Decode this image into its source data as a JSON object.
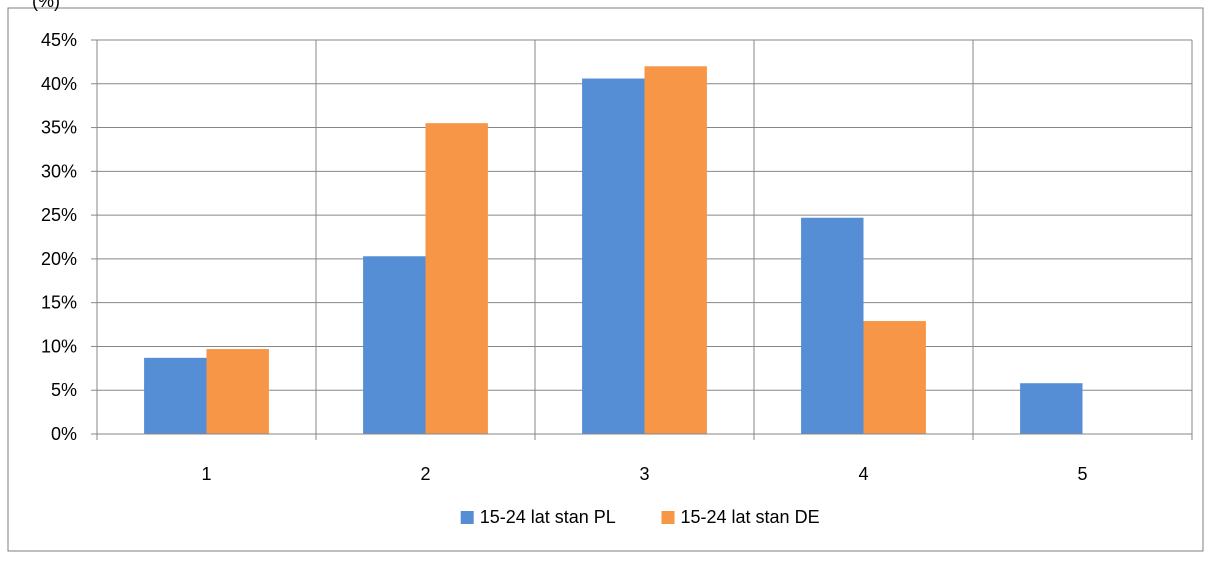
{
  "chart_data": {
    "type": "bar",
    "title": "",
    "xlabel": "",
    "ylabel": "",
    "categories": [
      "1",
      "2",
      "3",
      "4",
      "5"
    ],
    "series": [
      {
        "name": "15-24 lat stan PL",
        "color": "#558ED5",
        "values": [
          8.7,
          20.3,
          40.6,
          24.7,
          5.8
        ]
      },
      {
        "name": "15-24 lat stan DE",
        "color": "#F79646",
        "values": [
          9.7,
          35.5,
          42.0,
          12.9,
          0.0
        ]
      }
    ],
    "ylim": [
      0,
      45
    ],
    "ytick_labels": [
      "0%",
      "5%",
      "10%",
      "15%",
      "20%",
      "25%",
      "30%",
      "35%",
      "40%",
      "45%"
    ],
    "grid": "on",
    "legend": "bottom",
    "truncated_top_text": "(%)"
  }
}
